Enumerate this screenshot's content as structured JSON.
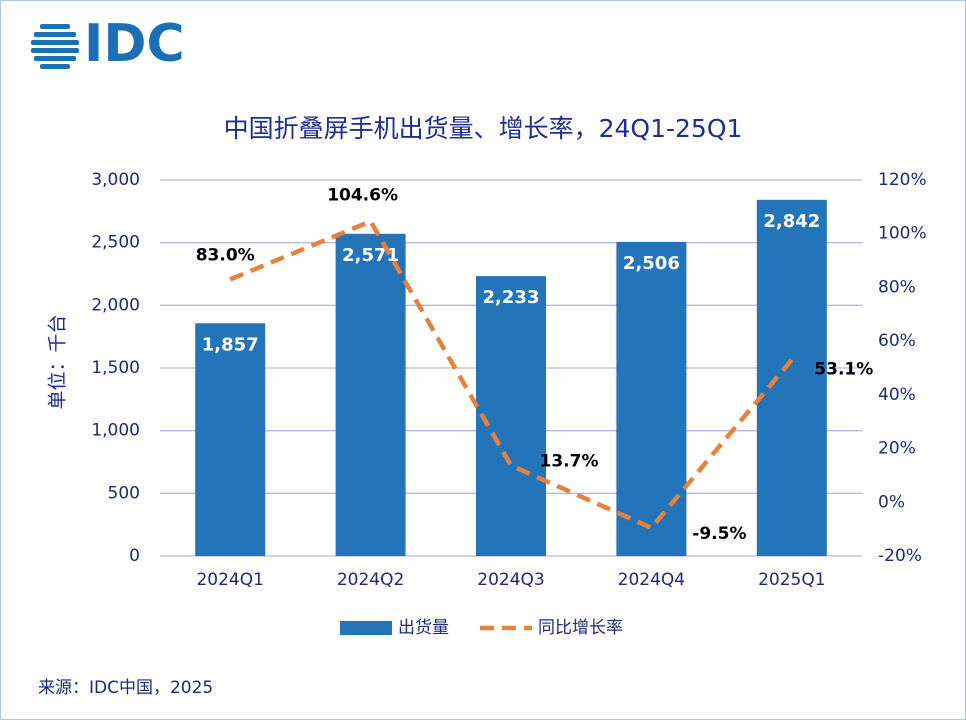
{
  "logo": "IDC",
  "source": "来源：IDC中国，2025",
  "chart_data": {
    "type": "combo",
    "title": "中国折叠屏手机出货量、增长率，24Q1-25Q1",
    "y_label": "单位：千台",
    "categories": [
      "2024Q1",
      "2024Q2",
      "2024Q3",
      "2024Q4",
      "2025Q1"
    ],
    "series": [
      {
        "name": "出货量",
        "type": "bar",
        "color": "#2474ba",
        "values": [
          1857,
          2571,
          2233,
          2506,
          2842
        ],
        "value_labels": [
          "1,857",
          "2,571",
          "2,233",
          "2,506",
          "2,842"
        ]
      },
      {
        "name": "同比增长率",
        "type": "line",
        "axis": "y2",
        "color": "#e8823a",
        "values": [
          83.0,
          104.6,
          13.7,
          -9.5,
          53.1
        ],
        "value_labels": [
          "83.0%",
          "104.6%",
          "13.7%",
          "-9.5%",
          "53.1%"
        ]
      }
    ],
    "ylim": [
      0,
      3000
    ],
    "yticks": [
      0,
      500,
      {
        "value": 1000,
        "label": "1,000"
      },
      {
        "value": 1500,
        "label": "1,500"
      },
      {
        "value": 2000,
        "label": "2,000"
      },
      {
        "value": 2500,
        "label": "2,500"
      },
      {
        "value": 3000,
        "label": "3,000"
      }
    ],
    "y2lim": [
      -20,
      120
    ],
    "y2ticks": [
      {
        "value": -20,
        "label": "-20%"
      },
      {
        "value": 0,
        "label": "0%"
      },
      {
        "value": 20,
        "label": "20%"
      },
      {
        "value": 40,
        "label": "40%"
      },
      {
        "value": 60,
        "label": "60%"
      },
      {
        "value": 80,
        "label": "80%"
      },
      {
        "value": 100,
        "label": "100%"
      },
      {
        "value": 120,
        "label": "120%"
      }
    ],
    "grid": true,
    "legend": "bottom"
  }
}
